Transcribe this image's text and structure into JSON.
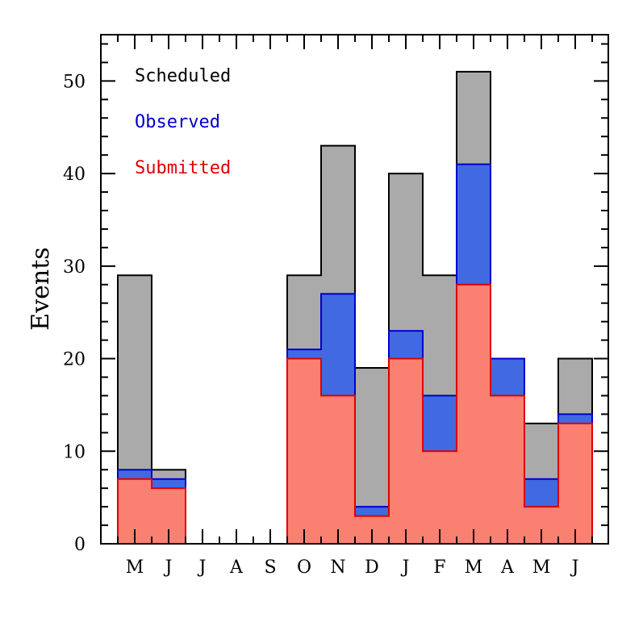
{
  "chart_data": {
    "type": "bar",
    "subtype": "overlapping-step-histogram",
    "categories": [
      "M",
      "J",
      "J",
      "A",
      "S",
      "O",
      "N",
      "D",
      "J",
      "F",
      "M",
      "A",
      "M",
      "J"
    ],
    "series": [
      {
        "name": "Scheduled",
        "color": "#aaaaaa",
        "edge": "#000000",
        "text_color": "#000000",
        "values": [
          29,
          8,
          0,
          0,
          0,
          29,
          43,
          19,
          40,
          29,
          51,
          20,
          13,
          20
        ]
      },
      {
        "name": "Observed",
        "color": "#4169e1",
        "edge": "#0000cc",
        "text_color": "#0000cc",
        "values": [
          8,
          7,
          0,
          0,
          0,
          21,
          27,
          4,
          23,
          16,
          41,
          20,
          7,
          14
        ]
      },
      {
        "name": "Submitted",
        "color": "#fa8072",
        "edge": "#dd0000",
        "text_color": "#dd0000",
        "values": [
          7,
          6,
          0,
          0,
          0,
          20,
          16,
          3,
          20,
          10,
          28,
          16,
          4,
          13
        ]
      }
    ],
    "ylabel": "Events",
    "xlabel": "",
    "ylim": [
      0,
      55
    ],
    "yticks": [
      0,
      10,
      20,
      30,
      40,
      50
    ],
    "legend_position": "top-left"
  }
}
